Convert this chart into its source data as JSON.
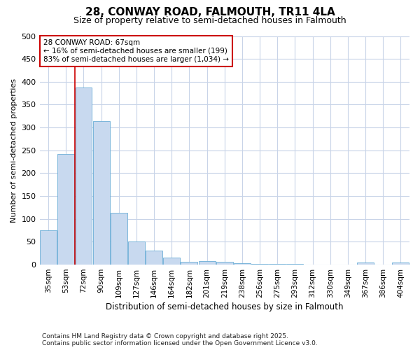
{
  "title1": "28, CONWAY ROAD, FALMOUTH, TR11 4LA",
  "title2": "Size of property relative to semi-detached houses in Falmouth",
  "xlabel": "Distribution of semi-detached houses by size in Falmouth",
  "ylabel": "Number of semi-detached properties",
  "footnote1": "Contains HM Land Registry data © Crown copyright and database right 2025.",
  "footnote2": "Contains public sector information licensed under the Open Government Licence v3.0.",
  "annotation_title": "28 CONWAY ROAD: 67sqm",
  "annotation_line1": "← 16% of semi-detached houses are smaller (199)",
  "annotation_line2": "83% of semi-detached houses are larger (1,034) →",
  "bar_labels": [
    "35sqm",
    "53sqm",
    "72sqm",
    "90sqm",
    "109sqm",
    "127sqm",
    "146sqm",
    "164sqm",
    "182sqm",
    "201sqm",
    "219sqm",
    "238sqm",
    "256sqm",
    "275sqm",
    "293sqm",
    "312sqm",
    "330sqm",
    "349sqm",
    "367sqm",
    "386sqm",
    "404sqm"
  ],
  "bar_values": [
    75,
    242,
    388,
    314,
    114,
    50,
    30,
    15,
    6,
    7,
    6,
    3,
    2,
    1,
    1,
    0,
    0,
    0,
    4,
    0,
    4
  ],
  "bar_color": "#c8d9ef",
  "bar_edge_color": "#6baed6",
  "vline_color": "#cc0000",
  "vline_pos": 1.5,
  "ylim": [
    0,
    500
  ],
  "yticks": [
    0,
    50,
    100,
    150,
    200,
    250,
    300,
    350,
    400,
    450,
    500
  ],
  "annotation_box_color": "#ffffff",
  "annotation_box_edge": "#cc0000",
  "bg_color": "#ffffff",
  "grid_color": "#c8d4e8"
}
